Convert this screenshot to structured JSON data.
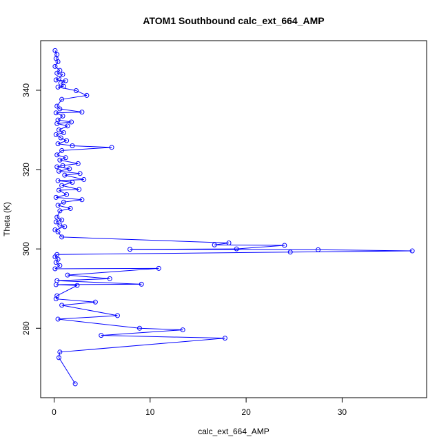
{
  "chart_data": {
    "type": "line",
    "title": "ATOM1 Southbound calc_ext_664_AMP",
    "xlabel": "calc_ext_664_AMP",
    "ylabel": "Theta (K)",
    "xlim": [
      -1.4,
      38.8
    ],
    "ylim": [
      262.5,
      352.5
    ],
    "xticks": [
      0,
      10,
      20,
      30
    ],
    "yticks": [
      280,
      300,
      320,
      340
    ],
    "grid": false,
    "legend": "none",
    "series_color": "#0000ff",
    "marker": "open-circle",
    "series": [
      {
        "points": [
          [
            0.1,
            350.0
          ],
          [
            0.3,
            349.0
          ],
          [
            0.2,
            348.0
          ],
          [
            0.4,
            347.2
          ],
          [
            0.1,
            346.0
          ],
          [
            0.6,
            345.0
          ],
          [
            0.3,
            344.3
          ],
          [
            0.9,
            344.0
          ],
          [
            0.5,
            343.0
          ],
          [
            0.2,
            342.6
          ],
          [
            1.2,
            342.4
          ],
          [
            0.7,
            341.8
          ],
          [
            1.0,
            341.0
          ],
          [
            0.4,
            340.8
          ],
          [
            2.3,
            339.9
          ],
          [
            3.4,
            338.7
          ],
          [
            0.8,
            337.7
          ],
          [
            0.3,
            336.0
          ],
          [
            0.6,
            335.3
          ],
          [
            2.9,
            334.5
          ],
          [
            0.2,
            334.3
          ],
          [
            0.9,
            333.5
          ],
          [
            0.4,
            332.5
          ],
          [
            1.8,
            332.0
          ],
          [
            0.3,
            331.6
          ],
          [
            1.4,
            331.0
          ],
          [
            0.5,
            330.0
          ],
          [
            1.0,
            329.3
          ],
          [
            0.2,
            328.8
          ],
          [
            0.7,
            328.0
          ],
          [
            1.3,
            327.3
          ],
          [
            0.4,
            326.5
          ],
          [
            1.9,
            326.0
          ],
          [
            6.0,
            325.6
          ],
          [
            0.8,
            324.8
          ],
          [
            0.3,
            323.7
          ],
          [
            1.2,
            323.0
          ],
          [
            0.6,
            322.4
          ],
          [
            2.5,
            321.5
          ],
          [
            0.9,
            321.0
          ],
          [
            0.3,
            320.7
          ],
          [
            1.6,
            320.2
          ],
          [
            0.5,
            319.6
          ],
          [
            2.7,
            319.0
          ],
          [
            1.1,
            318.6
          ],
          [
            3.1,
            317.5
          ],
          [
            0.4,
            317.2
          ],
          [
            1.9,
            316.8
          ],
          [
            0.8,
            316.0
          ],
          [
            2.6,
            315.0
          ],
          [
            0.5,
            314.8
          ],
          [
            1.3,
            313.7
          ],
          [
            0.2,
            313.0
          ],
          [
            2.9,
            312.4
          ],
          [
            1.0,
            311.8
          ],
          [
            0.4,
            311.0
          ],
          [
            1.7,
            310.2
          ],
          [
            0.6,
            309.6
          ],
          [
            0.3,
            308.0
          ],
          [
            0.8,
            307.3
          ],
          [
            0.2,
            306.8
          ],
          [
            0.6,
            306.0
          ],
          [
            1.1,
            305.6
          ],
          [
            0.1,
            304.8
          ],
          [
            0.4,
            304.3
          ],
          [
            0.8,
            303.0
          ],
          [
            18.2,
            301.5
          ],
          [
            16.7,
            301.0
          ],
          [
            24.0,
            300.9
          ],
          [
            19.0,
            300.0
          ],
          [
            7.9,
            299.9
          ],
          [
            27.5,
            299.8
          ],
          [
            37.3,
            299.5
          ],
          [
            24.6,
            299.2
          ],
          [
            0.3,
            298.6
          ],
          [
            0.1,
            298.0
          ],
          [
            0.4,
            297.4
          ],
          [
            0.2,
            296.6
          ],
          [
            0.6,
            295.8
          ],
          [
            0.1,
            295.0
          ],
          [
            10.9,
            295.1
          ],
          [
            1.4,
            293.4
          ],
          [
            5.8,
            292.5
          ],
          [
            0.3,
            292.0
          ],
          [
            9.1,
            291.1
          ],
          [
            0.2,
            291.0
          ],
          [
            2.4,
            290.8
          ],
          [
            0.3,
            288.2
          ],
          [
            0.2,
            287.4
          ],
          [
            4.3,
            286.6
          ],
          [
            0.8,
            285.8
          ],
          [
            6.6,
            283.2
          ],
          [
            0.4,
            282.3
          ],
          [
            8.9,
            280.0
          ],
          [
            13.4,
            279.6
          ],
          [
            4.9,
            278.2
          ],
          [
            17.8,
            277.5
          ],
          [
            0.6,
            274.0
          ],
          [
            0.5,
            272.6
          ],
          [
            2.2,
            266.0
          ]
        ]
      }
    ]
  }
}
